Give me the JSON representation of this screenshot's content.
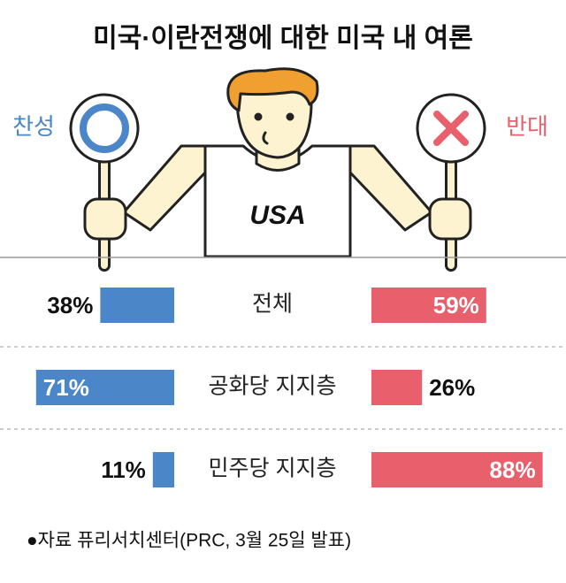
{
  "chart_data": {
    "type": "diverging-bar",
    "title": "미국·이란전쟁에 대한 미국 내 여론",
    "categories": [
      "전체",
      "공화당 지지층",
      "민주당 지지층"
    ],
    "series": [
      {
        "name": "찬성",
        "color": "#4a86c8",
        "values": [
          38,
          71,
          11
        ],
        "value_labels": [
          "38%",
          "71%",
          "11%"
        ]
      },
      {
        "name": "반대",
        "color": "#e8606c",
        "values": [
          59,
          26,
          88
        ],
        "value_labels": [
          "59%",
          "26%",
          "88%"
        ]
      }
    ],
    "shirt_text": "USA",
    "source": "●자료 퓨리서치센터(PRC, 3월 25일 발표)"
  }
}
